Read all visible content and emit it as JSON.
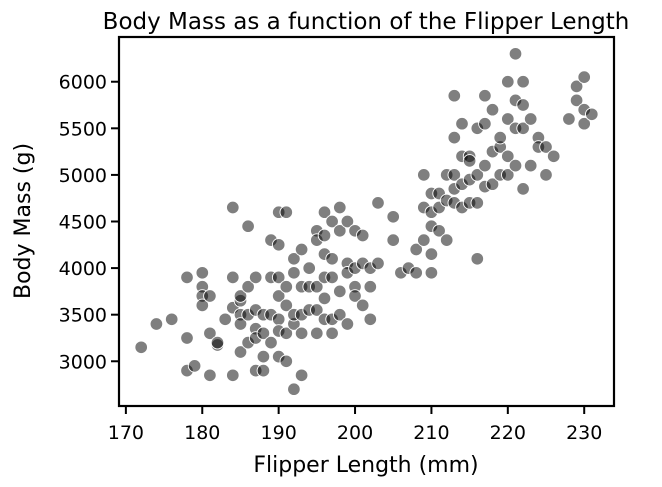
{
  "chart_data": {
    "type": "scatter",
    "title": "Body Mass as a function of the Flipper Length",
    "xlabel": "Flipper Length (mm)",
    "ylabel": "Body Mass (g)",
    "xlim": [
      169.1,
      233.9
    ],
    "ylim": [
      2520,
      6480
    ],
    "xticks": [
      170,
      180,
      190,
      200,
      210,
      220,
      230
    ],
    "yticks": [
      3000,
      3500,
      4000,
      4500,
      5000,
      5500,
      6000
    ],
    "grid": false,
    "point_color": "#000000",
    "point_alpha": 0.5,
    "points": [
      [
        172,
        3150
      ],
      [
        174,
        3400
      ],
      [
        176,
        3450
      ],
      [
        178,
        3900
      ],
      [
        178,
        3250
      ],
      [
        178,
        2900
      ],
      [
        179,
        2950
      ],
      [
        180,
        3950
      ],
      [
        180,
        3800
      ],
      [
        180,
        3700
      ],
      [
        180,
        3600
      ],
      [
        181,
        3300
      ],
      [
        181,
        3700
      ],
      [
        181,
        2850
      ],
      [
        182,
        3175
      ],
      [
        182,
        3200
      ],
      [
        183,
        3450
      ],
      [
        184,
        4650
      ],
      [
        184,
        3900
      ],
      [
        184,
        3575
      ],
      [
        184,
        2850
      ],
      [
        185,
        3500
      ],
      [
        185,
        3650
      ],
      [
        185,
        3700
      ],
      [
        185,
        3400
      ],
      [
        185,
        3100
      ],
      [
        186,
        4450
      ],
      [
        186,
        3800
      ],
      [
        186,
        3500
      ],
      [
        186,
        3200
      ],
      [
        187,
        3900
      ],
      [
        187,
        3550
      ],
      [
        187,
        3350
      ],
      [
        187,
        3250
      ],
      [
        187,
        2900
      ],
      [
        188,
        3500
      ],
      [
        188,
        3300
      ],
      [
        188,
        3050
      ],
      [
        188,
        2900
      ],
      [
        189,
        4300
      ],
      [
        189,
        3200
      ],
      [
        189,
        3500
      ],
      [
        189,
        3900
      ],
      [
        190,
        4600
      ],
      [
        190,
        4250
      ],
      [
        190,
        3700
      ],
      [
        190,
        3900
      ],
      [
        190,
        3450
      ],
      [
        190,
        3325
      ],
      [
        190,
        3050
      ],
      [
        191,
        4600
      ],
      [
        191,
        3800
      ],
      [
        191,
        3600
      ],
      [
        191,
        3300
      ],
      [
        191,
        3000
      ],
      [
        192,
        4100
      ],
      [
        192,
        3950
      ],
      [
        192,
        3400
      ],
      [
        192,
        2700
      ],
      [
        192,
        3500
      ],
      [
        193,
        4200
      ],
      [
        193,
        3800
      ],
      [
        193,
        3500
      ],
      [
        193,
        3300
      ],
      [
        193,
        2850
      ],
      [
        194,
        4000
      ],
      [
        194,
        3800
      ],
      [
        194,
        3550
      ],
      [
        195,
        4400
      ],
      [
        195,
        4300
      ],
      [
        195,
        3800
      ],
      [
        195,
        3550
      ],
      [
        195,
        3300
      ],
      [
        196,
        4600
      ],
      [
        196,
        4350
      ],
      [
        196,
        4150
      ],
      [
        196,
        3900
      ],
      [
        196,
        3675
      ],
      [
        196,
        3450
      ],
      [
        197,
        4500
      ],
      [
        197,
        4100
      ],
      [
        197,
        3900
      ],
      [
        197,
        3450
      ],
      [
        197,
        3300
      ],
      [
        198,
        4650
      ],
      [
        198,
        4400
      ],
      [
        198,
        3500
      ],
      [
        198,
        3750
      ],
      [
        199,
        4500
      ],
      [
        199,
        4050
      ],
      [
        199,
        3950
      ],
      [
        199,
        3400
      ],
      [
        200,
        4400
      ],
      [
        200,
        4000
      ],
      [
        200,
        3800
      ],
      [
        200,
        3700
      ],
      [
        201,
        4350
      ],
      [
        201,
        4050
      ],
      [
        201,
        3600
      ],
      [
        202,
        4000
      ],
      [
        202,
        3800
      ],
      [
        202,
        3450
      ],
      [
        203,
        4700
      ],
      [
        203,
        4050
      ],
      [
        205,
        4550
      ],
      [
        205,
        4300
      ],
      [
        206,
        3950
      ],
      [
        207,
        4000
      ],
      [
        208,
        4200
      ],
      [
        208,
        3950
      ],
      [
        209,
        5000
      ],
      [
        209,
        4650
      ],
      [
        209,
        4300
      ],
      [
        210,
        4800
      ],
      [
        210,
        4600
      ],
      [
        210,
        4450
      ],
      [
        210,
        4150
      ],
      [
        210,
        3950
      ],
      [
        211,
        4800
      ],
      [
        211,
        4650
      ],
      [
        211,
        4400
      ],
      [
        212,
        5000
      ],
      [
        212,
        4725
      ],
      [
        212,
        4300
      ],
      [
        213,
        5850
      ],
      [
        213,
        5400
      ],
      [
        213,
        5000
      ],
      [
        213,
        4850
      ],
      [
        213,
        4700
      ],
      [
        214,
        5550
      ],
      [
        214,
        5200
      ],
      [
        214,
        4900
      ],
      [
        214,
        4650
      ],
      [
        215,
        5200
      ],
      [
        215,
        5150
      ],
      [
        215,
        4950
      ],
      [
        215,
        4700
      ],
      [
        216,
        5500
      ],
      [
        216,
        5000
      ],
      [
        216,
        4700
      ],
      [
        216,
        4100
      ],
      [
        217,
        5850
      ],
      [
        217,
        5550
      ],
      [
        217,
        5100
      ],
      [
        217,
        4875
      ],
      [
        218,
        5700
      ],
      [
        218,
        5250
      ],
      [
        218,
        4900
      ],
      [
        219,
        5300
      ],
      [
        219,
        5000
      ],
      [
        219,
        5400
      ],
      [
        220,
        6000
      ],
      [
        220,
        5600
      ],
      [
        220,
        5200
      ],
      [
        220,
        5000
      ],
      [
        221,
        6300
      ],
      [
        221,
        5800
      ],
      [
        221,
        5500
      ],
      [
        221,
        5100
      ],
      [
        222,
        6000
      ],
      [
        222,
        5750
      ],
      [
        222,
        5500
      ],
      [
        222,
        4850
      ],
      [
        223,
        5600
      ],
      [
        223,
        5100
      ],
      [
        224,
        5400
      ],
      [
        224,
        5300
      ],
      [
        225,
        5300
      ],
      [
        225,
        5000
      ],
      [
        226,
        5200
      ],
      [
        228,
        5600
      ],
      [
        229,
        5950
      ],
      [
        229,
        5800
      ],
      [
        230,
        6050
      ],
      [
        230,
        5700
      ],
      [
        230,
        5550
      ],
      [
        231,
        5650
      ]
    ]
  }
}
